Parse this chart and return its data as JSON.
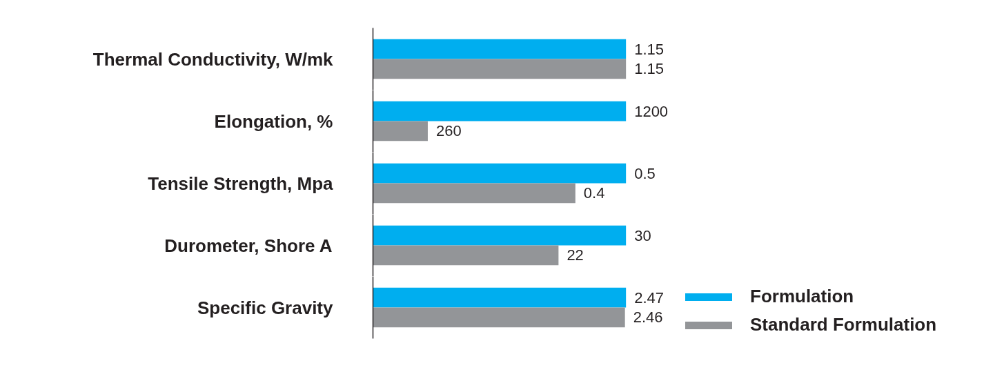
{
  "chart_data": [
    {
      "type": "bar",
      "orientation": "horizontal",
      "categories": [
        "Thermal Conductivity, W/mk"
      ],
      "data_labels": true,
      "grid": false,
      "series": [
        {
          "color": "#00aeef",
          "values": [
            1.15
          ]
        },
        {
          "color": "#939598",
          "values": [
            1.15
          ]
        }
      ]
    },
    {
      "type": "bar",
      "orientation": "horizontal",
      "categories": [
        "Elongation, %"
      ],
      "data_labels": true,
      "grid": false,
      "series": [
        {
          "color": "#00aeef",
          "values": [
            1200
          ]
        },
        {
          "color": "#939598",
          "values": [
            260
          ]
        }
      ]
    },
    {
      "type": "bar",
      "orientation": "horizontal",
      "categories": [
        "Tensile Strength, Mpa"
      ],
      "data_labels": true,
      "grid": false,
      "series": [
        {
          "color": "#00aeef",
          "values": [
            0.5
          ]
        },
        {
          "color": "#939598",
          "values": [
            0.4
          ]
        }
      ]
    },
    {
      "type": "bar",
      "orientation": "horizontal",
      "categories": [
        "Durometer, Shore A"
      ],
      "data_labels": true,
      "grid": false,
      "series": [
        {
          "color": "#00aeef",
          "values": [
            30
          ]
        },
        {
          "color": "#939598",
          "values": [
            22
          ]
        }
      ]
    },
    {
      "type": "bar",
      "orientation": "horizontal",
      "categories": [
        "Specific Gravity"
      ],
      "data_labels": true,
      "grid": false,
      "legend": "right",
      "series": [
        {
          "name": "Formulation",
          "color": "#00aeef",
          "values": [
            2.47
          ]
        },
        {
          "name": "Standard Formulation",
          "color": "#939598",
          "values": [
            2.46
          ]
        }
      ]
    }
  ]
}
